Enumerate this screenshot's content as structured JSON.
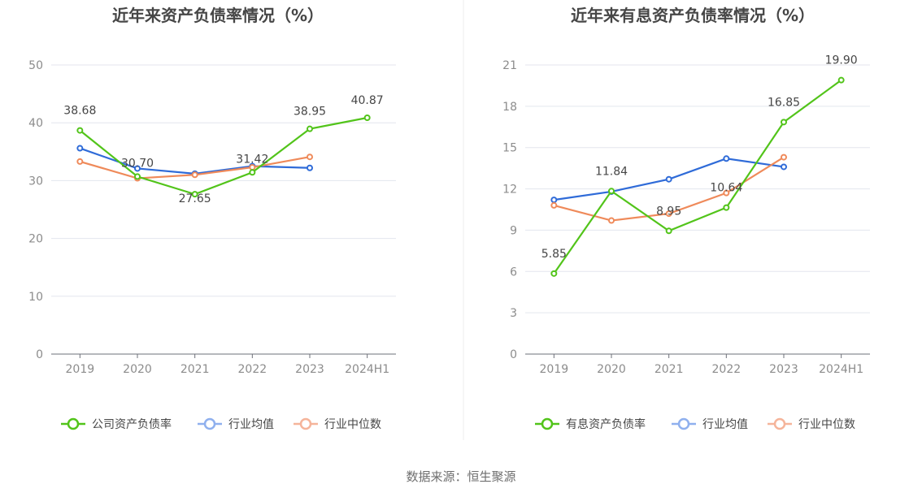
{
  "colors": {
    "company": "#52c41a",
    "avg": "#2f6bd8",
    "median": "#ef8a5a",
    "legend_avg": "#8fb0ee",
    "legend_median": "#f5b49a"
  },
  "source": "数据来源：恒生聚源",
  "chart_data": [
    {
      "type": "line",
      "title": "近年来资产负债率情况（%）",
      "categories": [
        "2019",
        "2020",
        "2021",
        "2022",
        "2023",
        "2024H1"
      ],
      "ylim": [
        0,
        50
      ],
      "yticks": [
        "0",
        "10",
        "20",
        "30",
        "40",
        "50"
      ],
      "grid": true,
      "legend_position": "bottom",
      "series": [
        {
          "name": "公司资产负债率",
          "values": [
            38.68,
            30.7,
            27.65,
            31.42,
            38.95,
            40.87
          ],
          "labels": [
            "38.68",
            "30.70",
            "27.65",
            "31.42",
            "38.95",
            "40.87"
          ]
        },
        {
          "name": "行业均值",
          "values": [
            35.6,
            32.1,
            31.2,
            32.5,
            32.2,
            null
          ]
        },
        {
          "name": "行业中位数",
          "values": [
            33.3,
            30.4,
            31.0,
            32.3,
            34.1,
            null
          ]
        }
      ]
    },
    {
      "type": "line",
      "title": "近年来有息资产负债率情况（%）",
      "categories": [
        "2019",
        "2020",
        "2021",
        "2022",
        "2023",
        "2024H1"
      ],
      "ylim": [
        0,
        21
      ],
      "yticks": [
        "0",
        "3",
        "6",
        "9",
        "12",
        "15",
        "18",
        "21"
      ],
      "grid": true,
      "legend_position": "bottom",
      "series": [
        {
          "name": "有息资产负债率",
          "values": [
            5.85,
            11.84,
            8.95,
            10.64,
            16.85,
            19.9
          ],
          "labels": [
            "5.85",
            "11.84",
            "8.95",
            "10.64",
            "16.85",
            "19.90"
          ]
        },
        {
          "name": "行业均值",
          "values": [
            11.2,
            11.8,
            12.7,
            14.2,
            13.6,
            null
          ]
        },
        {
          "name": "行业中位数",
          "values": [
            10.8,
            9.7,
            10.2,
            11.7,
            14.3,
            null
          ]
        }
      ]
    }
  ]
}
